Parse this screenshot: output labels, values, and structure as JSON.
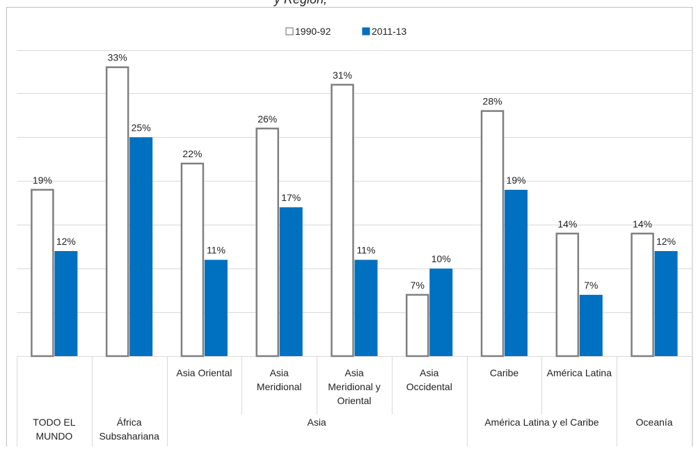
{
  "title_fragment": "y Región,",
  "colors": {
    "series_1990": "#ffffff",
    "series_1990_stroke": "#7f7f7f",
    "series_2011": "#0070c0",
    "gridline": "#d9d9d9",
    "frame": "#bfbfbf"
  },
  "chart_data": {
    "type": "bar",
    "categories": [
      "TODO EL MUNDO",
      "África Subsahariana",
      "Asia Oriental",
      "Asia Meridional",
      "Asia Meridional y Oriental",
      "Asia Occidental",
      "Caribe",
      "América Latina",
      "Oceanía"
    ],
    "category_lines": [
      [
        "",
        "",
        "",
        "TODO EL",
        "MUNDO"
      ],
      [
        "",
        "",
        "",
        "África",
        "Subsahariana"
      ],
      [
        "Asia Oriental",
        "",
        "",
        "",
        ""
      ],
      [
        "Asia",
        "Meridional",
        "",
        "",
        ""
      ],
      [
        "Asia",
        "Meridional y",
        "Oriental",
        "",
        ""
      ],
      [
        "Asia",
        "Occidental",
        "",
        "",
        ""
      ],
      [
        "Caribe",
        "",
        "",
        "",
        ""
      ],
      [
        "América Latina",
        "",
        "",
        "",
        ""
      ],
      [
        "",
        "",
        "",
        "Oceanía",
        ""
      ]
    ],
    "groups": [
      {
        "label": "",
        "start": 0,
        "end": 0
      },
      {
        "label": "",
        "start": 1,
        "end": 1
      },
      {
        "label": "Asia",
        "start": 2,
        "end": 5
      },
      {
        "label": "América Latina y el Caribe",
        "start": 6,
        "end": 7
      },
      {
        "label": "",
        "start": 8,
        "end": 8
      }
    ],
    "series": [
      {
        "name": "1990-92",
        "values": [
          19,
          33,
          22,
          26,
          31,
          7,
          28,
          14,
          14
        ],
        "labels": [
          "19%",
          "33%",
          "22%",
          "26%",
          "31%",
          "7%",
          "28%",
          "14%",
          "14%"
        ]
      },
      {
        "name": "2011-13",
        "values": [
          12,
          25,
          11,
          17,
          11,
          10,
          19,
          7,
          12
        ],
        "labels": [
          "12%",
          "25%",
          "11%",
          "17%",
          "11%",
          "10%",
          "19%",
          "7%",
          "12%"
        ]
      }
    ],
    "ylim": [
      0,
      35
    ],
    "gridlines": [
      5,
      10,
      15,
      20,
      25,
      30,
      35
    ],
    "grid": true,
    "legend_position": "top-center",
    "y_axis_labels": false
  }
}
